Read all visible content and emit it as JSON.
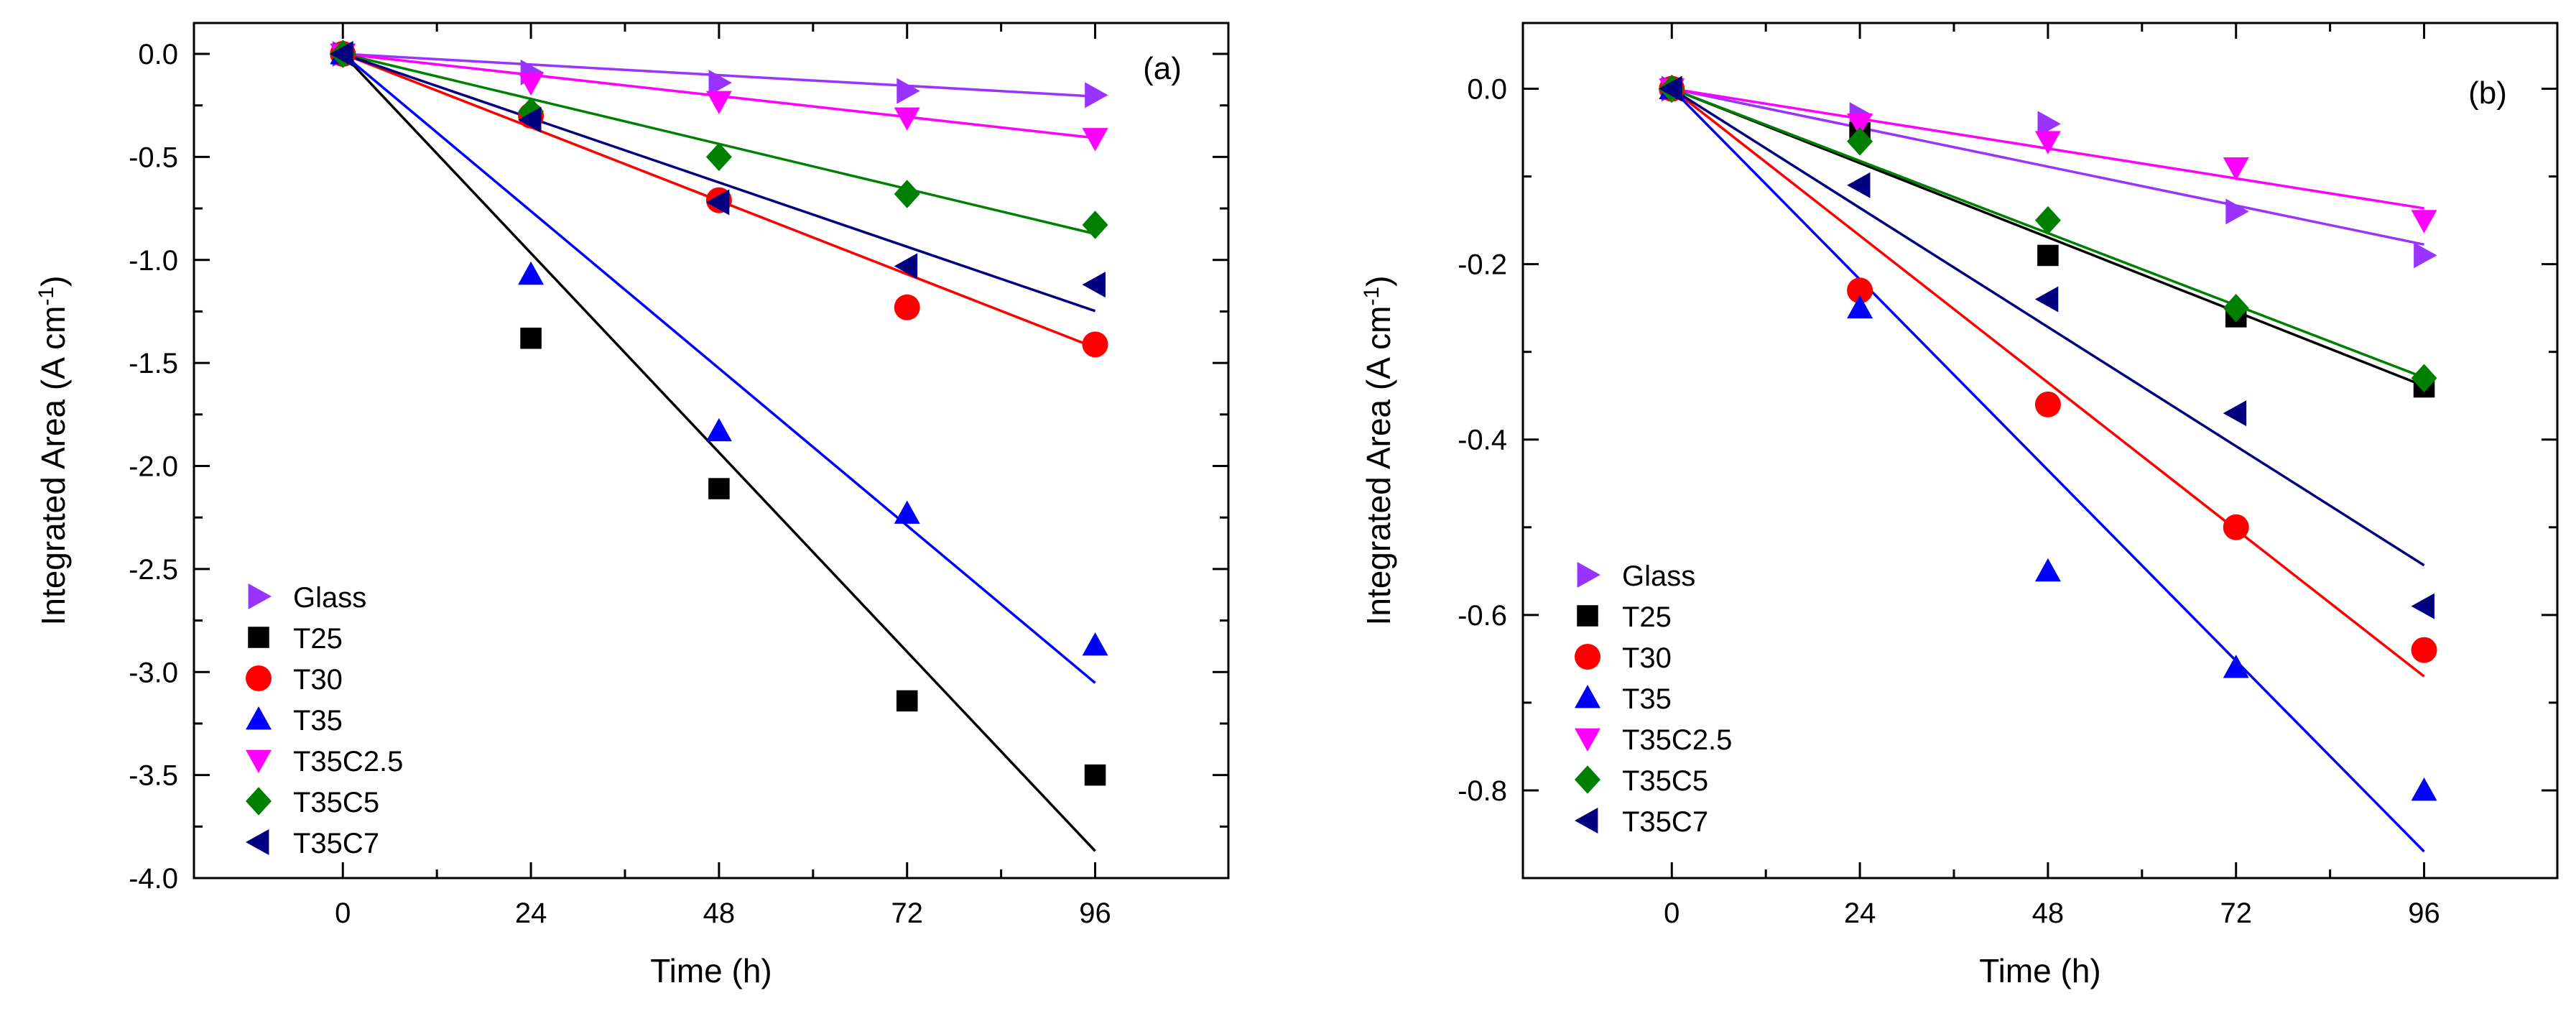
{
  "chart_data": [
    {
      "type": "scatter",
      "panel_label": "(a)",
      "xlabel": "Time (h)",
      "ylabel_main": "Integrated Area (A cm",
      "ylabel_sup": "-1",
      "ylabel_close": ")",
      "xlim": [
        -19,
        113
      ],
      "ylim": [
        -4.0,
        0.15
      ],
      "xticks": [
        0,
        24,
        48,
        72,
        96
      ],
      "xtick_labels": [
        "0",
        "24",
        "48",
        "72",
        "96"
      ],
      "yticks": [
        0.0,
        -0.5,
        -1.0,
        -1.5,
        -2.0,
        -2.5,
        -3.0,
        -3.5,
        -4.0
      ],
      "ytick_labels": [
        "0.0",
        "-0.5",
        "-1.0",
        "-1.5",
        "-2.0",
        "-2.5",
        "-3.0",
        "-3.5",
        "-4.0"
      ],
      "legend_position": "bottom-left",
      "series": [
        {
          "name": "Glass",
          "color": "#9933ff",
          "marker": "triangle-right",
          "x": [
            0,
            24,
            48,
            72,
            96
          ],
          "y": [
            0,
            -0.09,
            -0.14,
            -0.18,
            -0.2
          ],
          "fit_slope": -0.00215
        },
        {
          "name": "T25",
          "color": "#000000",
          "marker": "square",
          "x": [
            0,
            24,
            48,
            72,
            96
          ],
          "y": [
            0,
            -1.38,
            -2.11,
            -3.14,
            -3.5
          ],
          "fit_slope": -0.0403
        },
        {
          "name": "T30",
          "color": "#ff0000",
          "marker": "circle",
          "x": [
            0,
            24,
            48,
            72,
            96
          ],
          "y": [
            0,
            -0.3,
            -0.71,
            -1.23,
            -1.41
          ],
          "fit_slope": -0.01485
        },
        {
          "name": "T35",
          "color": "#0000ff",
          "marker": "triangle-up",
          "x": [
            0,
            24,
            48,
            72,
            96
          ],
          "y": [
            0,
            -1.07,
            -1.83,
            -2.23,
            -2.87
          ],
          "fit_slope": -0.0318
        },
        {
          "name": "T35C2.5",
          "color": "#ff00ff",
          "marker": "triangle-down",
          "x": [
            0,
            24,
            48,
            72,
            96
          ],
          "y": [
            0,
            -0.14,
            -0.23,
            -0.31,
            -0.41
          ],
          "fit_slope": -0.00425
        },
        {
          "name": "T35C5",
          "color": "#008000",
          "marker": "diamond",
          "x": [
            0,
            24,
            48,
            72,
            96
          ],
          "y": [
            0,
            -0.28,
            -0.5,
            -0.68,
            -0.83
          ],
          "fit_slope": -0.0091
        },
        {
          "name": "T35C7",
          "color": "#000080",
          "marker": "triangle-left",
          "x": [
            0,
            24,
            48,
            72,
            96
          ],
          "y": [
            0,
            -0.32,
            -0.72,
            -1.03,
            -1.12
          ],
          "fit_slope": -0.013
        }
      ]
    },
    {
      "type": "scatter",
      "panel_label": "(b)",
      "xlabel": "Time (h)",
      "ylabel_main": "Integrated Area (A cm",
      "ylabel_sup": "-1",
      "ylabel_close": ")",
      "xlim": [
        -19,
        113
      ],
      "ylim": [
        -0.9,
        0.075
      ],
      "xticks": [
        0,
        24,
        48,
        72,
        96
      ],
      "xtick_labels": [
        "0",
        "24",
        "48",
        "72",
        "96"
      ],
      "yticks": [
        0.0,
        -0.2,
        -0.4,
        -0.6,
        -0.8
      ],
      "ytick_labels": [
        "0.0",
        "-0.2",
        "-0.4",
        "-0.6",
        "-0.8"
      ],
      "legend_position": "bottom-left",
      "series": [
        {
          "name": "Glass",
          "color": "#9933ff",
          "marker": "triangle-right",
          "x": [
            0,
            24,
            48,
            72,
            96
          ],
          "y": [
            0,
            -0.03,
            -0.04,
            -0.14,
            -0.19
          ],
          "fit_slope": -0.00185
        },
        {
          "name": "T25",
          "color": "#000000",
          "marker": "square",
          "x": [
            0,
            24,
            48,
            72,
            96
          ],
          "y": [
            0,
            -0.05,
            -0.19,
            -0.26,
            -0.34
          ],
          "fit_slope": -0.00353
        },
        {
          "name": "T30",
          "color": "#ff0000",
          "marker": "circle",
          "x": [
            0,
            24,
            48,
            72,
            96
          ],
          "y": [
            0,
            -0.23,
            -0.36,
            -0.5,
            -0.64
          ],
          "fit_slope": -0.00698
        },
        {
          "name": "T35",
          "color": "#0000ff",
          "marker": "triangle-up",
          "x": [
            0,
            24,
            48,
            72,
            96
          ],
          "y": [
            0,
            -0.25,
            -0.55,
            -0.66,
            -0.8
          ],
          "fit_slope": -0.00906
        },
        {
          "name": "T35C2.5",
          "color": "#ff00ff",
          "marker": "triangle-down",
          "x": [
            0,
            24,
            48,
            72,
            96
          ],
          "y": [
            0,
            -0.04,
            -0.06,
            -0.09,
            -0.15
          ],
          "fit_slope": -0.00142
        },
        {
          "name": "T35C5",
          "color": "#008000",
          "marker": "diamond",
          "x": [
            0,
            24,
            48,
            72,
            96
          ],
          "y": [
            0,
            -0.06,
            -0.15,
            -0.25,
            -0.33
          ],
          "fit_slope": -0.00343
        },
        {
          "name": "T35C7",
          "color": "#000080",
          "marker": "triangle-left",
          "x": [
            0,
            24,
            48,
            72,
            96
          ],
          "y": [
            0,
            -0.11,
            -0.24,
            -0.37,
            -0.59
          ],
          "fit_slope": -0.00566
        }
      ]
    }
  ]
}
